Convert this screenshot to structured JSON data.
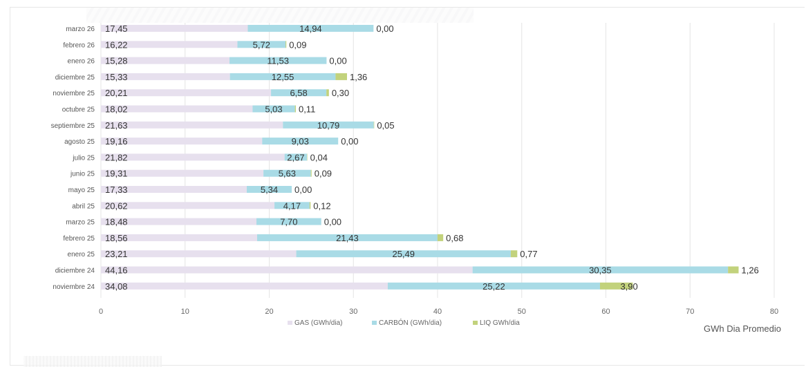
{
  "chart_data": {
    "type": "bar",
    "orientation": "horizontal",
    "stacked": true,
    "categories": [
      "marzo 26",
      "febrero 26",
      "enero 26",
      "diciembre 25",
      "noviembre 25",
      "octubre 25",
      "septiembre 25",
      "agosto 25",
      "julio 25",
      "junio 25",
      "mayo 25",
      "abril 25",
      "marzo 25",
      "febrero 25",
      "enero 25",
      "diciembre 24",
      "noviembre 24"
    ],
    "series": [
      {
        "name": "GAS (GWh/dia)",
        "color": "#e7e0ee",
        "values": [
          17.45,
          16.22,
          15.28,
          15.33,
          20.21,
          18.02,
          21.63,
          19.16,
          21.82,
          19.31,
          17.33,
          20.62,
          18.48,
          18.56,
          23.21,
          44.16,
          34.08
        ],
        "labels": [
          "17,45",
          "16,22",
          "15,28",
          "15,33",
          "20,21",
          "18,02",
          "21,63",
          "19,16",
          "21,82",
          "19,31",
          "17,33",
          "20,62",
          "18,48",
          "18,56",
          "23,21",
          "44,16",
          "34,08"
        ]
      },
      {
        "name": "CARBÓN (GWh/dia)",
        "color": "#a9dbe6",
        "values": [
          14.94,
          5.72,
          11.53,
          12.55,
          6.58,
          5.03,
          10.79,
          9.03,
          2.67,
          5.63,
          5.34,
          4.17,
          7.7,
          21.43,
          25.49,
          30.35,
          25.22
        ],
        "labels": [
          "14,94",
          "5,72",
          "11,53",
          "12,55",
          "6,58",
          "5,03",
          "10,79",
          "9,03",
          "2,67",
          "5,63",
          "5,34",
          "4,17",
          "7,70",
          "21,43",
          "25,49",
          "30,35",
          "25,22"
        ]
      },
      {
        "name": "LIQ GWh/dia",
        "color": "#c2d27c",
        "values": [
          0.0,
          0.09,
          0.0,
          1.36,
          0.3,
          0.11,
          0.05,
          0.0,
          0.04,
          0.09,
          0.0,
          0.12,
          0.0,
          0.68,
          0.77,
          1.26,
          3.9
        ],
        "labels": [
          "0,00",
          "0,09",
          "0,00",
          "1,36",
          "0,30",
          "0,11",
          "0,05",
          "0,00",
          "0,04",
          "0,09",
          "0,00",
          "0,12",
          "0,00",
          "0,68",
          "0,77",
          "1,26",
          "3,90"
        ]
      }
    ],
    "xlim": [
      0,
      80
    ],
    "xticks": [
      0,
      10,
      20,
      30,
      40,
      50,
      60,
      70,
      80
    ],
    "xlabel": "GWh Dia Promedio",
    "legend_position": "bottom",
    "grid": "vertical"
  }
}
